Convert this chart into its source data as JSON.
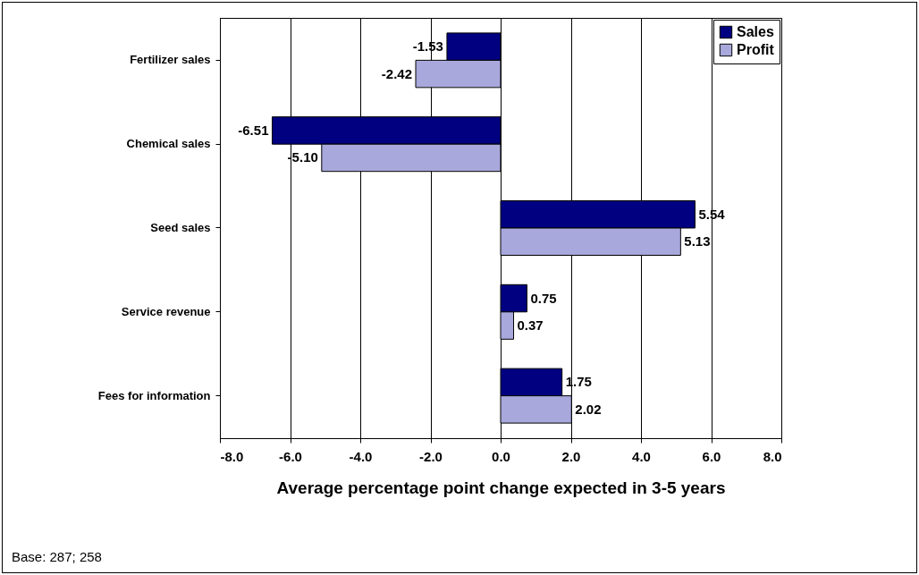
{
  "chart_data": {
    "type": "bar",
    "orientation": "horizontal",
    "categories": [
      "Fertilizer sales",
      "Chemical sales",
      "Seed sales",
      "Service revenue",
      "Fees for information"
    ],
    "series": [
      {
        "name": "Sales",
        "color": "#000080",
        "values": [
          -1.53,
          -6.51,
          5.54,
          0.75,
          1.75
        ],
        "value_labels": [
          "-1.53",
          "-6.51",
          "5.54",
          "0.75",
          "1.75"
        ]
      },
      {
        "name": "Profit",
        "color": "#a8a8dc",
        "values": [
          -2.42,
          -5.1,
          5.13,
          0.37,
          2.02
        ],
        "value_labels": [
          "-2.42",
          "-5.10",
          "5.13",
          "0.37",
          "2.02"
        ]
      }
    ],
    "xlim": [
      -8,
      8
    ],
    "xticks": [
      {
        "value": -8,
        "label": "-8.0"
      },
      {
        "value": -6,
        "label": "-6.0"
      },
      {
        "value": -4,
        "label": "-4.0"
      },
      {
        "value": -2,
        "label": "-2.0"
      },
      {
        "value": 0,
        "label": "0.0"
      },
      {
        "value": 2,
        "label": "2.0"
      },
      {
        "value": 4,
        "label": "4.0"
      },
      {
        "value": 6,
        "label": "6.0"
      },
      {
        "value": 8,
        "label": "8.0"
      }
    ],
    "xlabel": "Average percentage point change expected in 3-5 years",
    "grid": "x",
    "legend": "top right",
    "annotations": [
      "Base: 287; 258"
    ]
  }
}
